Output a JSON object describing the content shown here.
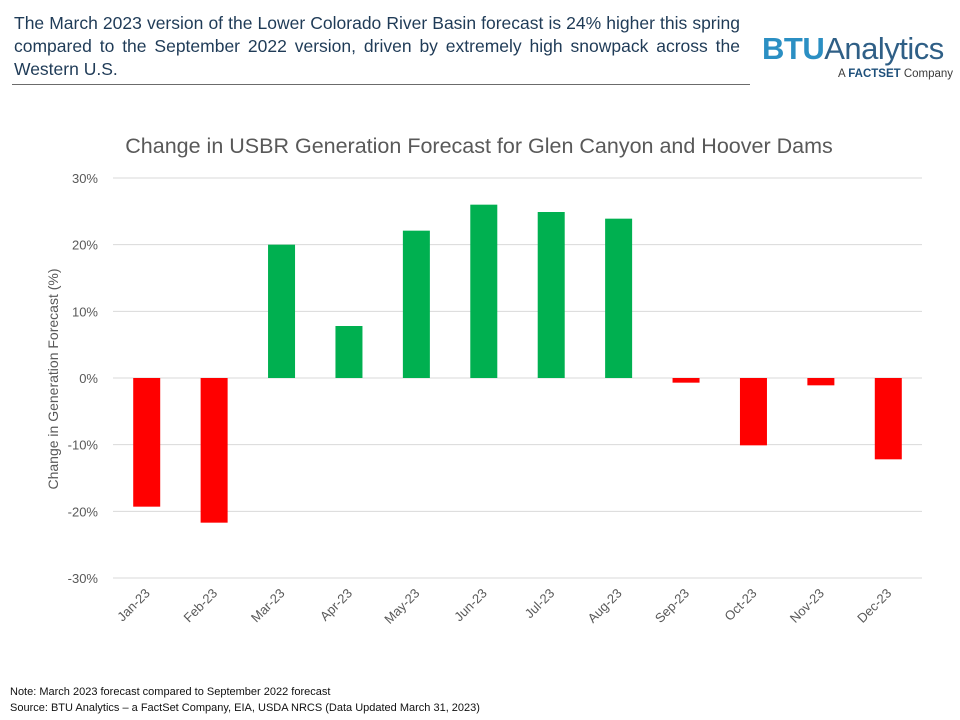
{
  "header": {
    "headline": "The March 2023 version of the Lower Colorado River Basin forecast is 24% higher this spring compared to the September 2022 version, driven by extremely high snowpack across the Western U.S."
  },
  "logo": {
    "brand": "BTU",
    "product": "Analytics",
    "tagline_prefix": "A",
    "tagline_company": "FACTSET",
    "tagline_suffix": "Company"
  },
  "footer": {
    "note": "Note:  March 2023 forecast compared to September  2022 forecast",
    "source": "Source: BTU Analytics – a FactSet Company, EIA, USDA NRCS (Data Updated March 31, 2023)"
  },
  "colors": {
    "positive": "#00b050",
    "negative": "#ff0000",
    "grid": "#d9d9d9",
    "text": "#595959"
  },
  "chart_data": {
    "type": "bar",
    "title": "Change in USBR Generation Forecast for Glen Canyon and Hoover Dams",
    "xlabel": "",
    "ylabel": "Change in Generation Forecast (%)",
    "categories": [
      "Jan-23",
      "Feb-23",
      "Mar-23",
      "Apr-23",
      "May-23",
      "Jun-23",
      "Jul-23",
      "Aug-23",
      "Sep-23",
      "Oct-23",
      "Nov-23",
      "Dec-23"
    ],
    "values": [
      -19.3,
      -21.7,
      20.0,
      7.8,
      22.1,
      26.0,
      24.9,
      23.9,
      -0.7,
      -10.1,
      -1.1,
      -12.2
    ],
    "ylim": [
      -30,
      30
    ],
    "yticks": [
      -30,
      -20,
      -10,
      0,
      10,
      20,
      30
    ],
    "ytick_labels": [
      "-30%",
      "-20%",
      "-10%",
      "0%",
      "10%",
      "20%",
      "30%"
    ],
    "grid": true,
    "legend": "none"
  }
}
